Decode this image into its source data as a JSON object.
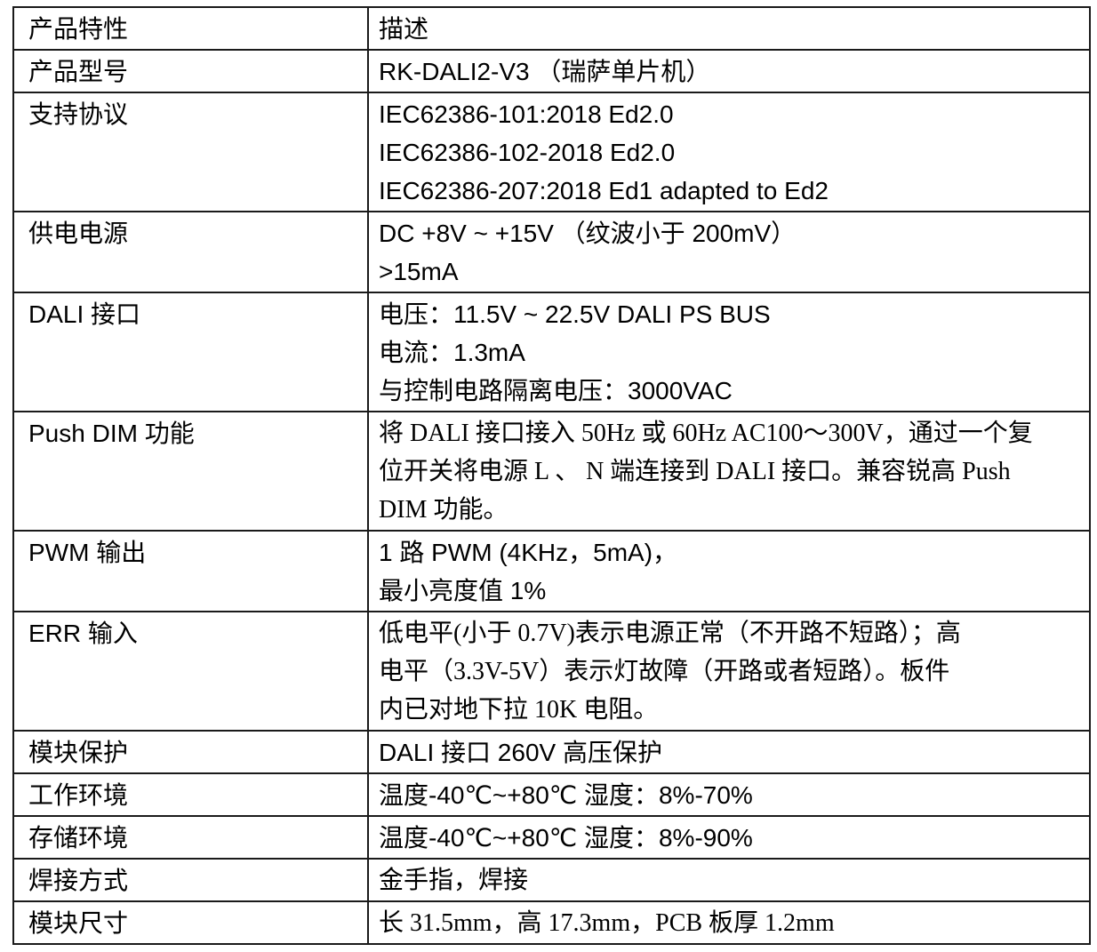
{
  "table": {
    "header": {
      "feature": "产品特性",
      "description": "描述"
    },
    "rows": [
      {
        "feature": "产品型号",
        "desc": [
          "RK-DALI2-V3 （瑞萨单片机）"
        ]
      },
      {
        "feature": "支持协议",
        "desc": [
          "IEC62386-101:2018 Ed2.0",
          "IEC62386-102-2018 Ed2.0",
          "IEC62386-207:2018 Ed1 adapted to Ed2"
        ]
      },
      {
        "feature": "供电电源",
        "desc": [
          "DC +8V ~ +15V （纹波小于 200mV）",
          ">15mA"
        ]
      },
      {
        "feature": "DALI 接口",
        "desc": [
          "电压：11.5V ~ 22.5V DALI PS BUS",
          "电流：1.3mA",
          "与控制电路隔离电压：3000VAC"
        ]
      },
      {
        "feature": "Push DIM 功能",
        "desc": [
          "将 DALI 接口接入 50Hz 或 60Hz AC100～300V，通过一个复",
          "位开关将电源 L 、 N 端连接到 DALI 接口。兼容锐高 Push",
          "DIM 功能。"
        ]
      },
      {
        "feature": "PWM 输出",
        "desc": [
          "1 路 PWM (4KHz，5mA)，",
          "最小亮度值 1%"
        ]
      },
      {
        "feature": "ERR 输入",
        "desc": [
          "低电平(小于 0.7V)表示电源正常（不开路不短路）；高",
          "电平（3.3V-5V）表示灯故障（开路或者短路）。板件",
          "内已对地下拉 10K 电阻。"
        ]
      },
      {
        "feature": "模块保护",
        "desc": [
          "DALI 接口 260V 高压保护"
        ]
      },
      {
        "feature": "工作环境",
        "desc": [
          "温度-40℃~+80℃  湿度：8%-70%"
        ]
      },
      {
        "feature": "存储环境",
        "desc": [
          "温度-40℃~+80℃  湿度：8%-90%"
        ]
      },
      {
        "feature": "焊接方式",
        "desc": [
          "金手指，焊接"
        ]
      },
      {
        "feature": "模块尺寸",
        "desc": [
          "长 31.5mm，高 17.3mm，PCB 板厚 1.2mm"
        ]
      }
    ]
  }
}
